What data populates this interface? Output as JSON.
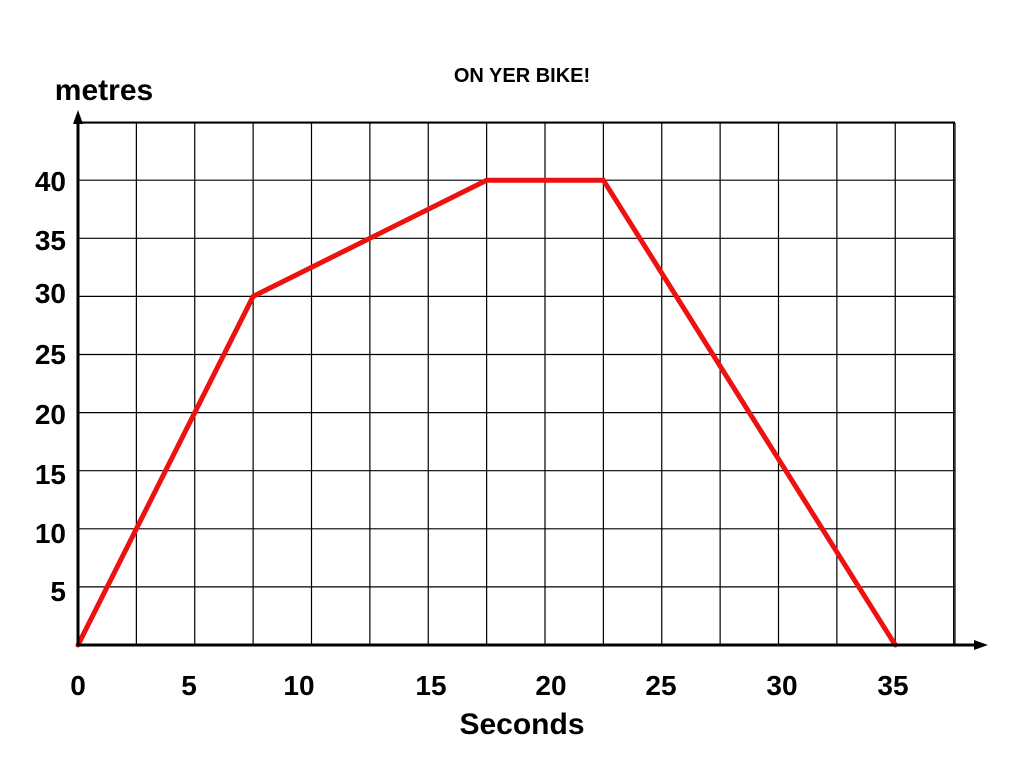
{
  "chart_data": {
    "type": "line",
    "title": "ON YER BIKE!",
    "xlabel": "Seconds",
    "ylabel": "metres",
    "xlim": [
      0,
      37.5
    ],
    "ylim": [
      0,
      45
    ],
    "grid": true,
    "x_ticks": [
      0,
      5,
      10,
      15,
      20,
      25,
      30,
      35
    ],
    "y_ticks": [
      5,
      10,
      15,
      20,
      25,
      30,
      35,
      40
    ],
    "series": [
      {
        "color": "#ee1111",
        "x": [
          0,
          7.5,
          17.5,
          22.5,
          35
        ],
        "y": [
          0,
          30,
          40,
          40,
          0
        ]
      }
    ]
  }
}
